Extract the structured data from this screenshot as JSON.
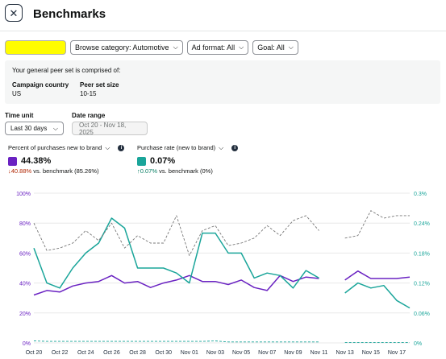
{
  "header": {
    "title": "Benchmarks",
    "close_icon": "close-icon"
  },
  "filters": {
    "highlighted_select": "",
    "browse_category": "Browse category: Automotive",
    "ad_format": "Ad format: All",
    "goal": "Goal: All"
  },
  "peer_set": {
    "intro": "Your general peer set is comprised of:",
    "country_label": "Campaign country",
    "country_value": "US",
    "size_label": "Peer set size",
    "size_value": "10-15"
  },
  "controls": {
    "time_unit_label": "Time unit",
    "time_unit_value": "Last 30 days",
    "date_range_label": "Date range",
    "date_range_value": "Oct 20 - Nov 18, 2025"
  },
  "metrics": {
    "ntb": {
      "label": "Percent of purchases new to brand",
      "value": "44.38%",
      "delta": "40.88%",
      "bench": "vs. benchmark (85.26%)",
      "color": "#6a22c2",
      "delta_color": "#b12704"
    },
    "rate": {
      "label": "Purchase rate (new to brand)",
      "value": "0.07%",
      "delta": "0.07%",
      "bench": "vs. benchmark (0%)",
      "color": "#1aa59a",
      "delta_color": "#067d62"
    }
  },
  "chart_data": {
    "type": "line",
    "x": [
      "Oct 20",
      "Oct 21",
      "Oct 22",
      "Oct 23",
      "Oct 24",
      "Oct 25",
      "Oct 26",
      "Oct 27",
      "Oct 28",
      "Oct 29",
      "Oct 30",
      "Oct 31",
      "Nov 01",
      "Nov 02",
      "Nov 03",
      "Nov 04",
      "Nov 05",
      "Nov 06",
      "Nov 07",
      "Nov 08",
      "Nov 09",
      "Nov 10",
      "Nov 11",
      "Nov 12",
      "Nov 13",
      "Nov 14",
      "Nov 15",
      "Nov 16",
      "Nov 17",
      "Nov 18"
    ],
    "x_tick_labels": [
      "Oct 20",
      "Oct 22",
      "Oct 24",
      "Oct 26",
      "Oct 28",
      "Oct 30",
      "Nov 01",
      "Nov 03",
      "Nov 05",
      "Nov 07",
      "Nov 09",
      "Nov 11",
      "Nov 13",
      "Nov 15",
      "Nov 17"
    ],
    "y_left": {
      "ticks": [
        "0%",
        "20%",
        "40%",
        "60%",
        "80%",
        "100%"
      ],
      "range": [
        0,
        100
      ]
    },
    "y_right": {
      "ticks": [
        "0%",
        "0.06%",
        "0.12%",
        "0.18%",
        "0.24%",
        "0.3%"
      ],
      "range": [
        0,
        0.3
      ]
    },
    "series": [
      {
        "axis": "left",
        "style": "solid",
        "color": "#6a22c2",
        "values": [
          32,
          35,
          34,
          38,
          40,
          41,
          45,
          40,
          41,
          37,
          40,
          42,
          45,
          41,
          41,
          39,
          42,
          37,
          35,
          45,
          41,
          44,
          43,
          null,
          42,
          48,
          43,
          43,
          43,
          44
        ]
      },
      {
        "axis": "right",
        "style": "solid",
        "color": "#1aa59a",
        "values": [
          0.19,
          0.12,
          0.11,
          0.15,
          0.18,
          0.2,
          0.25,
          0.23,
          0.15,
          0.15,
          0.15,
          0.14,
          0.12,
          0.22,
          0.22,
          0.18,
          0.18,
          0.13,
          0.14,
          0.135,
          0.11,
          0.145,
          0.13,
          null,
          0.1,
          0.12,
          0.11,
          0.115,
          0.085,
          0.07
        ]
      },
      {
        "axis": "right",
        "style": "dashed",
        "color": "#777777",
        "values": [
          0.24,
          0.185,
          0.19,
          0.2,
          0.225,
          0.205,
          0.24,
          0.19,
          0.215,
          0.2,
          0.2,
          0.255,
          0.175,
          0.225,
          0.235,
          0.195,
          0.2,
          0.21,
          0.235,
          0.215,
          0.245,
          0.255,
          0.225,
          null,
          0.21,
          0.215,
          0.265,
          0.25,
          0.255,
          0.255
        ]
      },
      {
        "axis": "right",
        "style": "dashed",
        "color": "#1aa59a",
        "values": [
          0.004,
          0.003,
          0.003,
          0.003,
          0.003,
          0.003,
          0.003,
          0.003,
          0.003,
          0.003,
          0.003,
          0.003,
          0.003,
          0.003,
          0.004,
          0.002,
          0.002,
          0.002,
          0.002,
          0.002,
          0.002,
          0.002,
          0.002,
          null,
          0.001,
          0.001,
          0.001,
          0.001,
          0.001,
          0.001
        ]
      }
    ]
  }
}
